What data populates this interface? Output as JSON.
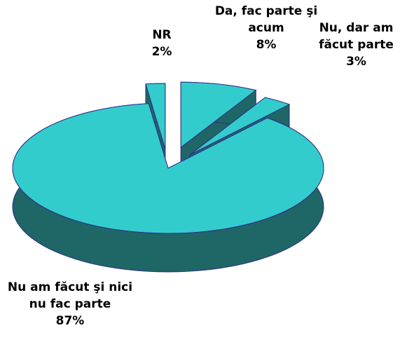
{
  "chart_data": {
    "type": "pie3d",
    "categories": [
      "Da, fac parte şi acum",
      "Nu, dar am făcut parte",
      "Nu am făcut şi nici nu fac parte",
      "NR"
    ],
    "values": [
      8,
      3,
      87,
      2
    ],
    "value_labels": [
      "8%",
      "3%",
      "87%",
      "2%"
    ],
    "color": "#33cccc",
    "side_color": "#1f6666",
    "edge_color": "#2e2e8a"
  }
}
